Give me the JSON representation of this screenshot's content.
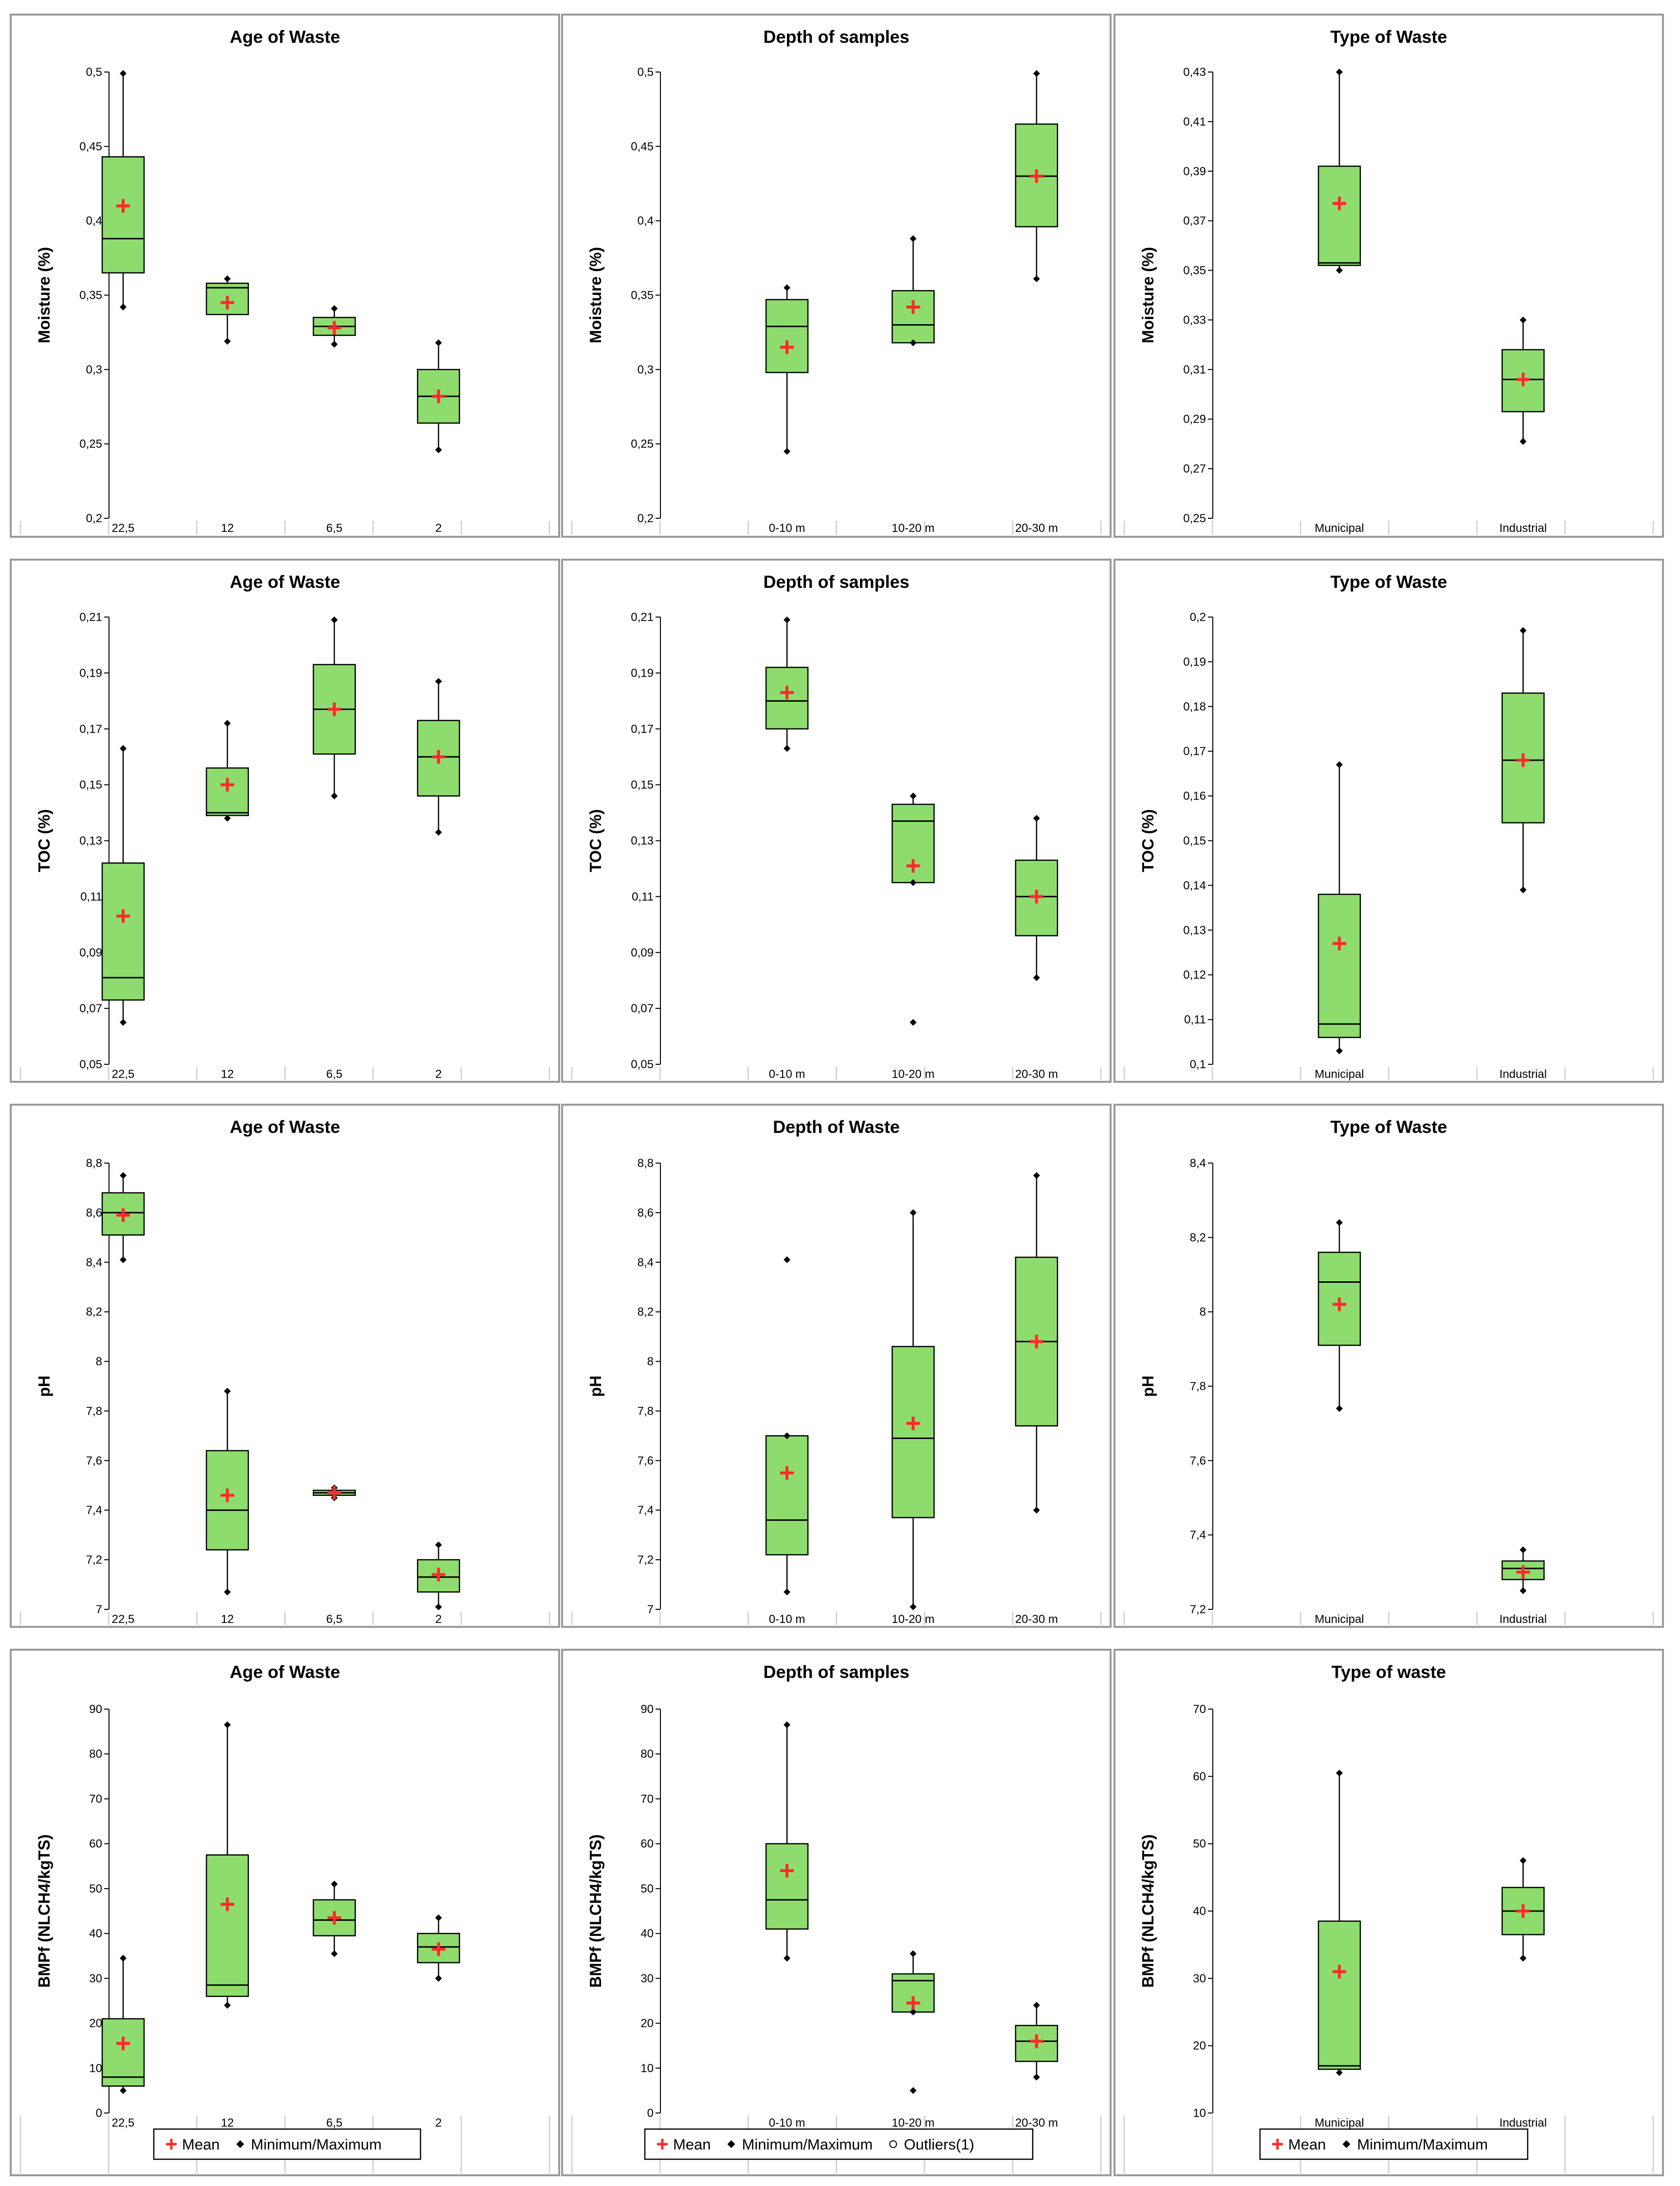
{
  "chart_data": [
    {
      "type": "boxplot",
      "title": "Age of Waste",
      "ylabel": "Moisture (%)",
      "ylim": [
        0.2,
        0.5
      ],
      "yticks": [
        "0,2",
        "0,25",
        "0,3",
        "0,35",
        "0,4",
        "0,45",
        "0,5"
      ],
      "categories": [
        "22,5",
        "12",
        "6,5",
        "2"
      ],
      "boxes": [
        {
          "min": 0.342,
          "q1": 0.365,
          "median": 0.388,
          "q3": 0.443,
          "max": 0.499,
          "mean": 0.41
        },
        {
          "min": 0.319,
          "q1": 0.337,
          "median": 0.355,
          "q3": 0.358,
          "max": 0.361,
          "mean": 0.345
        },
        {
          "min": 0.317,
          "q1": 0.323,
          "median": 0.329,
          "q3": 0.335,
          "max": 0.341,
          "mean": 0.328
        },
        {
          "min": 0.246,
          "q1": 0.264,
          "median": 0.282,
          "q3": 0.3,
          "max": 0.318,
          "mean": 0.282
        }
      ],
      "outliers": []
    },
    {
      "type": "boxplot",
      "title": "Depth of samples",
      "ylabel": "Moisture (%)",
      "ylim": [
        0.2,
        0.5
      ],
      "yticks": [
        "0,2",
        "0,25",
        "0,3",
        "0,35",
        "0,4",
        "0,45",
        "0,5"
      ],
      "categories": [
        "0-10 m",
        "10-20 m",
        "20-30 m"
      ],
      "boxes": [
        {
          "min": 0.245,
          "q1": 0.298,
          "median": 0.329,
          "q3": 0.347,
          "max": 0.355,
          "mean": 0.315
        },
        {
          "min": 0.318,
          "q1": 0.318,
          "median": 0.33,
          "q3": 0.353,
          "max": 0.388,
          "mean": 0.342
        },
        {
          "min": 0.361,
          "q1": 0.396,
          "median": 0.43,
          "q3": 0.465,
          "max": 0.499,
          "mean": 0.43
        }
      ],
      "outliers": []
    },
    {
      "type": "boxplot",
      "title": "Type of Waste",
      "ylabel": "Moisture (%)",
      "ylim": [
        0.25,
        0.43
      ],
      "yticks": [
        "0,25",
        "0,27",
        "0,29",
        "0,31",
        "0,33",
        "0,35",
        "0,37",
        "0,39",
        "0,41",
        "0,43"
      ],
      "categories": [
        "Municipal",
        "Industrial"
      ],
      "boxes": [
        {
          "min": 0.35,
          "q1": 0.352,
          "median": 0.353,
          "q3": 0.392,
          "max": 0.43,
          "mean": 0.377
        },
        {
          "min": 0.281,
          "q1": 0.293,
          "median": 0.306,
          "q3": 0.318,
          "max": 0.33,
          "mean": 0.306
        }
      ],
      "outliers": []
    },
    {
      "type": "boxplot",
      "title": "Age of Waste",
      "ylabel": "TOC (%)",
      "ylim": [
        0.05,
        0.21
      ],
      "yticks": [
        "0,05",
        "0,07",
        "0,09",
        "0,11",
        "0,13",
        "0,15",
        "0,17",
        "0,19",
        "0,21"
      ],
      "categories": [
        "22,5",
        "12",
        "6,5",
        "2"
      ],
      "boxes": [
        {
          "min": 0.065,
          "q1": 0.073,
          "median": 0.081,
          "q3": 0.122,
          "max": 0.163,
          "mean": 0.103
        },
        {
          "min": 0.138,
          "q1": 0.139,
          "median": 0.14,
          "q3": 0.156,
          "max": 0.172,
          "mean": 0.15
        },
        {
          "min": 0.146,
          "q1": 0.161,
          "median": 0.177,
          "q3": 0.193,
          "max": 0.209,
          "mean": 0.177
        },
        {
          "min": 0.133,
          "q1": 0.146,
          "median": 0.16,
          "q3": 0.173,
          "max": 0.187,
          "mean": 0.16
        }
      ],
      "outliers": []
    },
    {
      "type": "boxplot",
      "title": "Depth of samples",
      "ylabel": "TOC (%)",
      "ylim": [
        0.05,
        0.21
      ],
      "yticks": [
        "0,05",
        "0,07",
        "0,09",
        "0,11",
        "0,13",
        "0,15",
        "0,17",
        "0,19",
        "0,21"
      ],
      "categories": [
        "0-10 m",
        "10-20 m",
        "20-30 m"
      ],
      "boxes": [
        {
          "min": 0.163,
          "q1": 0.17,
          "median": 0.18,
          "q3": 0.192,
          "max": 0.209,
          "mean": 0.183
        },
        {
          "min": 0.115,
          "q1": 0.115,
          "median": 0.137,
          "q3": 0.143,
          "max": 0.146,
          "mean": 0.121
        },
        {
          "min": 0.081,
          "q1": 0.096,
          "median": 0.11,
          "q3": 0.123,
          "max": 0.138,
          "mean": 0.11
        }
      ],
      "outliers": [
        {
          "category": "10-20 m",
          "value": 0.065
        }
      ]
    },
    {
      "type": "boxplot",
      "title": "Type of Waste",
      "ylabel": "TOC (%)",
      "ylim": [
        0.1,
        0.2
      ],
      "yticks": [
        "0,1",
        "0,11",
        "0,12",
        "0,13",
        "0,14",
        "0,15",
        "0,16",
        "0,17",
        "0,18",
        "0,19",
        "0,2"
      ],
      "categories": [
        "Municipal",
        "Industrial"
      ],
      "boxes": [
        {
          "min": 0.103,
          "q1": 0.106,
          "median": 0.109,
          "q3": 0.138,
          "max": 0.167,
          "mean": 0.127
        },
        {
          "min": 0.139,
          "q1": 0.154,
          "median": 0.168,
          "q3": 0.183,
          "max": 0.197,
          "mean": 0.168
        }
      ],
      "outliers": []
    },
    {
      "type": "boxplot",
      "title": "Age of Waste",
      "ylabel": "pH",
      "ylim": [
        7,
        8.8
      ],
      "yticks": [
        "7",
        "7,2",
        "7,4",
        "7,6",
        "7,8",
        "8",
        "8,2",
        "8,4",
        "8,6",
        "8,8"
      ],
      "categories": [
        "22,5",
        "12",
        "6,5",
        "2"
      ],
      "boxes": [
        {
          "min": 8.41,
          "q1": 8.51,
          "median": 8.6,
          "q3": 8.68,
          "max": 8.75,
          "mean": 8.59
        },
        {
          "min": 7.07,
          "q1": 7.24,
          "median": 7.4,
          "q3": 7.64,
          "max": 7.88,
          "mean": 7.46
        },
        {
          "min": 7.45,
          "q1": 7.46,
          "median": 7.47,
          "q3": 7.48,
          "max": 7.49,
          "mean": 7.47
        },
        {
          "min": 7.01,
          "q1": 7.07,
          "median": 7.13,
          "q3": 7.2,
          "max": 7.26,
          "mean": 7.14
        }
      ],
      "outliers": []
    },
    {
      "type": "boxplot",
      "title": "Depth of Waste",
      "ylabel": "pH",
      "ylim": [
        7,
        8.8
      ],
      "yticks": [
        "7",
        "7,2",
        "7,4",
        "7,6",
        "7,8",
        "8",
        "8,2",
        "8,4",
        "8,6",
        "8,8"
      ],
      "categories": [
        "0-10 m",
        "10-20 m",
        "20-30 m"
      ],
      "boxes": [
        {
          "min": 7.07,
          "q1": 7.22,
          "median": 7.36,
          "q3": 7.7,
          "max": 7.7,
          "mean": 7.55
        },
        {
          "min": 7.01,
          "q1": 7.37,
          "median": 7.69,
          "q3": 8.06,
          "max": 8.6,
          "mean": 7.75
        },
        {
          "min": 7.4,
          "q1": 7.74,
          "median": 8.08,
          "q3": 8.42,
          "max": 8.75,
          "mean": 8.08
        }
      ],
      "outliers": [
        {
          "category": "0-10 m",
          "value": 8.41
        }
      ]
    },
    {
      "type": "boxplot",
      "title": "Type of Waste",
      "ylabel": "pH",
      "ylim": [
        7.2,
        8.4
      ],
      "yticks": [
        "7,2",
        "7,4",
        "7,6",
        "7,8",
        "8",
        "8,2",
        "8,4"
      ],
      "categories": [
        "Municipal",
        "Industrial"
      ],
      "boxes": [
        {
          "min": 7.74,
          "q1": 7.91,
          "median": 8.08,
          "q3": 8.16,
          "max": 8.24,
          "mean": 8.02
        },
        {
          "min": 7.25,
          "q1": 7.28,
          "median": 7.31,
          "q3": 7.33,
          "max": 7.36,
          "mean": 7.3
        }
      ],
      "outliers": []
    },
    {
      "type": "boxplot",
      "title": "Age of Waste",
      "ylabel": "BMPf (NLCH4/kgTS)",
      "ylim": [
        0,
        90
      ],
      "yticks": [
        "0",
        "10",
        "20",
        "30",
        "40",
        "50",
        "60",
        "70",
        "80",
        "90"
      ],
      "categories": [
        "22,5",
        "12",
        "6,5",
        "2"
      ],
      "boxes": [
        {
          "min": 5,
          "q1": 6,
          "median": 8,
          "q3": 21,
          "max": 34.5,
          "mean": 15.5
        },
        {
          "min": 24,
          "q1": 26,
          "median": 28.5,
          "q3": 57.5,
          "max": 86.5,
          "mean": 46.5
        },
        {
          "min": 35.5,
          "q1": 39.5,
          "median": 43,
          "q3": 47.5,
          "max": 51,
          "mean": 43.5
        },
        {
          "min": 30,
          "q1": 33.5,
          "median": 37,
          "q3": 40,
          "max": 43.5,
          "mean": 36.5
        }
      ],
      "outliers": []
    },
    {
      "type": "boxplot",
      "title": "Depth of samples",
      "ylabel": "BMPf (NLCH4/kgTS)",
      "ylim": [
        0,
        90
      ],
      "yticks": [
        "0",
        "10",
        "20",
        "30",
        "40",
        "50",
        "60",
        "70",
        "80",
        "90"
      ],
      "categories": [
        "0-10 m",
        "10-20 m",
        "20-30 m"
      ],
      "boxes": [
        {
          "min": 34.5,
          "q1": 41,
          "median": 47.5,
          "q3": 60,
          "max": 86.5,
          "mean": 54
        },
        {
          "min": 22.5,
          "q1": 22.5,
          "median": 29.5,
          "q3": 31,
          "max": 35.5,
          "mean": 24.5
        },
        {
          "min": 8,
          "q1": 11.5,
          "median": 16,
          "q3": 19.5,
          "max": 24,
          "mean": 16
        }
      ],
      "outliers": [
        {
          "category": "10-20 m",
          "value": 5
        }
      ]
    },
    {
      "type": "boxplot",
      "title": "Type of waste",
      "ylabel": "BMPf (NLCH4/kgTS)",
      "ylim": [
        10,
        70
      ],
      "yticks": [
        "10",
        "20",
        "30",
        "40",
        "50",
        "60",
        "70"
      ],
      "categories": [
        "Municipal",
        "Industrial"
      ],
      "boxes": [
        {
          "min": 16,
          "q1": 16.5,
          "median": 17,
          "q3": 38.5,
          "max": 60.5,
          "mean": 31
        },
        {
          "min": 33,
          "q1": 36.5,
          "median": 40,
          "q3": 43.5,
          "max": 47.5,
          "mean": 40
        }
      ],
      "outliers": []
    }
  ],
  "legends": [
    {
      "entries": [
        {
          "symbol": "+",
          "label": "Mean"
        },
        {
          "symbol": "◆",
          "label": "Minimum/Maximum"
        }
      ]
    },
    {
      "entries": [
        {
          "symbol": "+",
          "label": "Mean"
        },
        {
          "symbol": "◆",
          "label": "Minimum/Maximum"
        },
        {
          "symbol": "○",
          "label": "Outliers(1)"
        }
      ]
    },
    {
      "entries": [
        {
          "symbol": "+",
          "label": "Mean"
        },
        {
          "symbol": "◆",
          "label": "Minimum/Maximum"
        }
      ]
    }
  ],
  "colors": {
    "box_fill": "#8edc6e",
    "mean": "#ff2a2a",
    "frame": "#9a9a9a",
    "grid": "#d4d4d4",
    "ink": "#000000"
  }
}
